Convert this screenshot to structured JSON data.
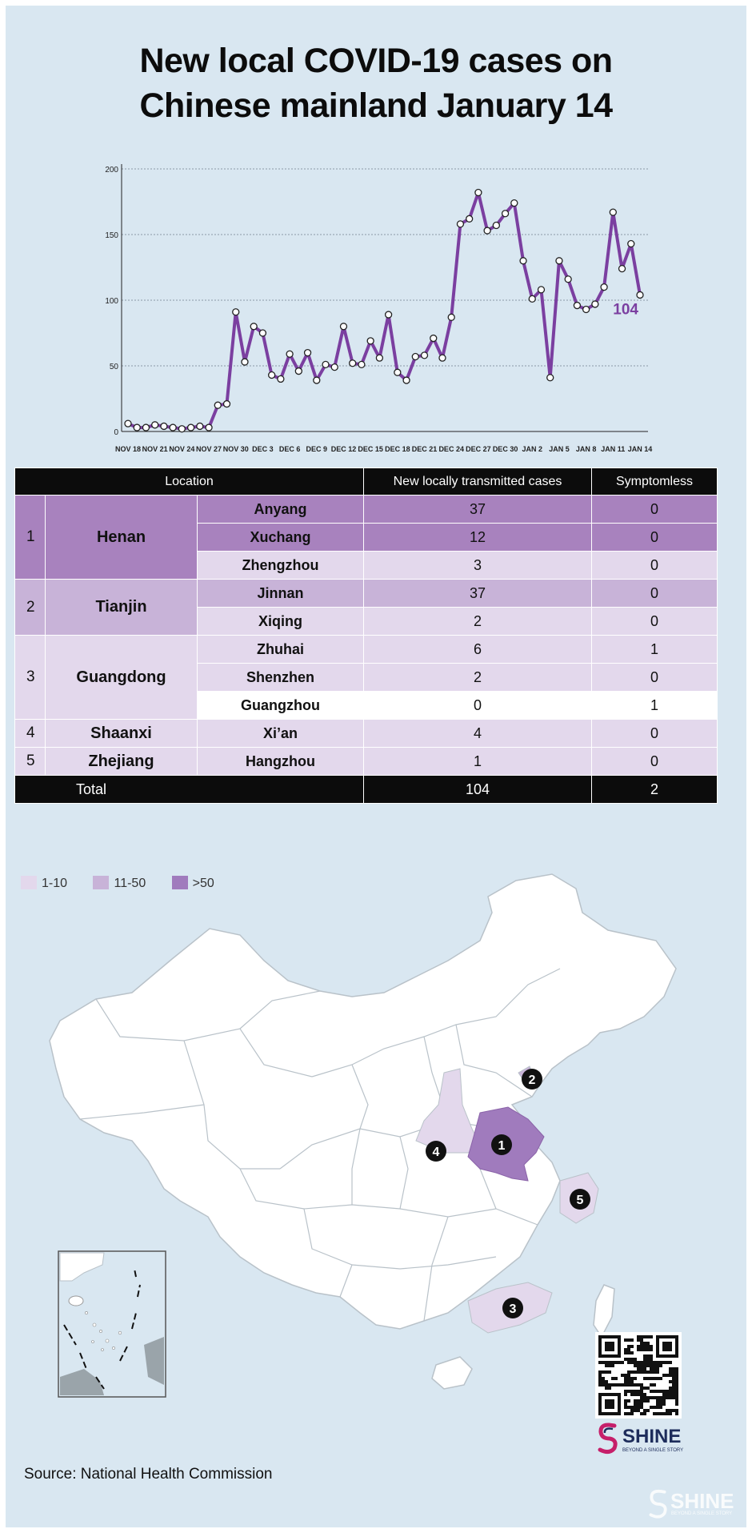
{
  "title_line1": "New local COVID-19 cases on",
  "title_line2": "Chinese mainland  January 14",
  "chart_data": {
    "type": "line",
    "title": "New local COVID-19 cases on Chinese mainland  January 14",
    "ylim": [
      0,
      200
    ],
    "yticks": [
      0,
      50,
      100,
      150,
      200
    ],
    "xtick_labels": [
      "NOV 18",
      "NOV 21",
      "NOV 24",
      "NOV 27",
      "NOV 30",
      "DEC 3",
      "DEC 6",
      "DEC 9",
      "DEC 12",
      "DEC 15",
      "DEC 18",
      "DEC 21",
      "DEC 24",
      "DEC 27",
      "DEC 30",
      "JAN 2",
      "JAN 5",
      "JAN 8",
      "JAN 11",
      "JAN 14"
    ],
    "x": [
      "NOV 18",
      "NOV 19",
      "NOV 20",
      "NOV 21",
      "NOV 22",
      "NOV 23",
      "NOV 24",
      "NOV 25",
      "NOV 26",
      "NOV 27",
      "NOV 28",
      "NOV 29",
      "NOV 30",
      "DEC 1",
      "DEC 2",
      "DEC 3",
      "DEC 4",
      "DEC 5",
      "DEC 6",
      "DEC 7",
      "DEC 8",
      "DEC 9",
      "DEC 10",
      "DEC 11",
      "DEC 12",
      "DEC 13",
      "DEC 14",
      "DEC 15",
      "DEC 16",
      "DEC 17",
      "DEC 18",
      "DEC 19",
      "DEC 20",
      "DEC 21",
      "DEC 22",
      "DEC 23",
      "DEC 24",
      "DEC 25",
      "DEC 26",
      "DEC 27",
      "DEC 28",
      "DEC 29",
      "DEC 30",
      "DEC 31",
      "JAN 1",
      "JAN 2",
      "JAN 3",
      "JAN 4",
      "JAN 5",
      "JAN 6",
      "JAN 7",
      "JAN 8",
      "JAN 9",
      "JAN 10",
      "JAN 11",
      "JAN 12",
      "JAN 13",
      "JAN 14"
    ],
    "values": [
      6,
      3,
      3,
      5,
      4,
      3,
      2,
      3,
      4,
      3,
      20,
      21,
      91,
      53,
      80,
      75,
      43,
      40,
      59,
      46,
      60,
      39,
      51,
      49,
      80,
      52,
      51,
      69,
      56,
      89,
      45,
      39,
      57,
      58,
      71,
      56,
      87,
      158,
      162,
      182,
      153,
      157,
      166,
      174,
      130,
      101,
      108,
      41,
      130,
      116,
      96,
      93,
      97,
      110,
      167,
      124,
      143,
      104
    ],
    "line_color": "#7b3fa0",
    "end_label": "104",
    "grid": true
  },
  "table": {
    "headers": [
      "Location",
      "New locally transmitted cases",
      "Symptomless"
    ],
    "groups": [
      {
        "rank": "1",
        "province": "Henan",
        "province_color": "#a882be",
        "rows": [
          {
            "city": "Anyang",
            "cases": "37",
            "symptomless": "0",
            "color": "#a882be"
          },
          {
            "city": "Xuchang",
            "cases": "12",
            "symptomless": "0",
            "color": "#a882be"
          },
          {
            "city": "Zhengzhou",
            "cases": "3",
            "symptomless": "0",
            "color": "#e3d8ec"
          }
        ]
      },
      {
        "rank": "2",
        "province": "Tianjin",
        "province_color": "#c8b3d8",
        "rows": [
          {
            "city": "Jinnan",
            "cases": "37",
            "symptomless": "0",
            "color": "#c8b3d8"
          },
          {
            "city": "Xiqing",
            "cases": "2",
            "symptomless": "0",
            "color": "#e3d8ec"
          }
        ]
      },
      {
        "rank": "3",
        "province": "Guangdong",
        "province_color": "#e3d8ec",
        "rows": [
          {
            "city": "Zhuhai",
            "cases": "6",
            "symptomless": "1",
            "color": "#e3d8ec"
          },
          {
            "city": "Shenzhen",
            "cases": "2",
            "symptomless": "0",
            "color": "#e3d8ec"
          },
          {
            "city": "Guangzhou",
            "cases": "0",
            "symptomless": "1",
            "color": "#ffffff"
          }
        ]
      },
      {
        "rank": "4",
        "province": "Shaanxi",
        "province_color": "#e3d8ec",
        "rows": [
          {
            "city": "Xi’an",
            "cases": "4",
            "symptomless": "0",
            "color": "#e3d8ec"
          }
        ]
      },
      {
        "rank": "5",
        "province": "Zhejiang",
        "province_color": "#e3d8ec",
        "rows": [
          {
            "city": "Hangzhou",
            "cases": "1",
            "symptomless": "0",
            "color": "#e3d8ec"
          }
        ]
      }
    ],
    "total_label": "Total",
    "total_cases": "104",
    "total_symptomless": "2"
  },
  "legend": [
    {
      "label": "1-10",
      "color": "#e3d8ec"
    },
    {
      "label": "11-50",
      "color": "#c8b3d8"
    },
    {
      "label": ">50",
      "color": "#a07bbd"
    }
  ],
  "map_markers": [
    "1",
    "2",
    "3",
    "4",
    "5"
  ],
  "source": "Source: National Health Commission",
  "logo": {
    "name": "SHINE",
    "tagline": "BEYOND A SINGLE STORY"
  },
  "colors": {
    "background": "#d9e7f1",
    "map_land": "#ffffff",
    "accent": "#7b3fa0"
  }
}
